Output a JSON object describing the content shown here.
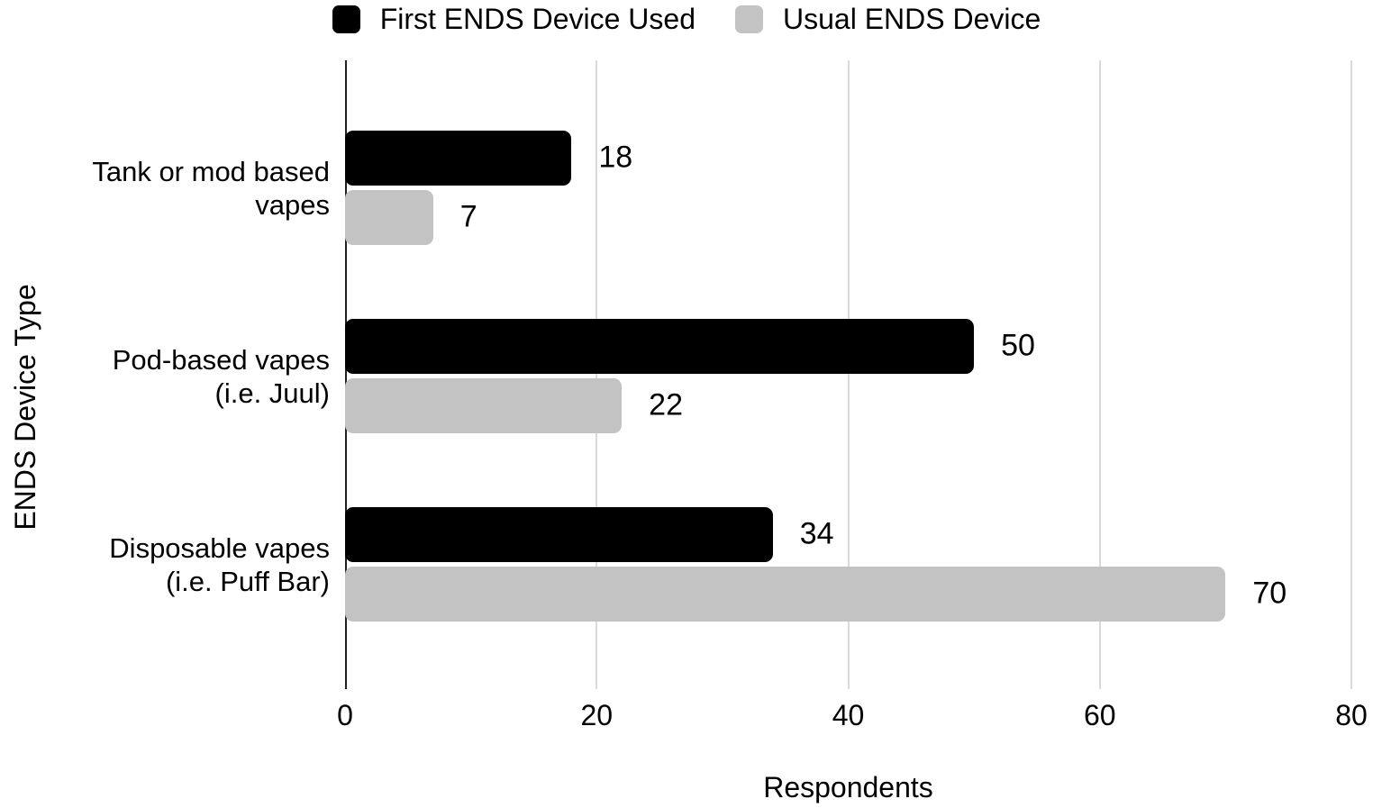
{
  "chart_data": {
    "type": "bar",
    "orientation": "horizontal",
    "title": "",
    "xlabel": "Respondents",
    "ylabel": "ENDS Device Type",
    "xlim": [
      0,
      80
    ],
    "xticks": [
      "0",
      "20",
      "40",
      "60",
      "80"
    ],
    "grid": true,
    "legend_position": "top-center",
    "data_labels": true,
    "categories": [
      {
        "lines": [
          "Tank or mod based",
          "vapes"
        ]
      },
      {
        "lines": [
          "Pod-based vapes",
          "(i.e. Juul)"
        ]
      },
      {
        "lines": [
          "Disposable vapes",
          "(i.e. Puff Bar)"
        ]
      }
    ],
    "series": [
      {
        "name": "First ENDS Device Used",
        "color": "#000000",
        "values": [
          18,
          50,
          34
        ]
      },
      {
        "name": "Usual ENDS Device",
        "color": "#c3c3c3",
        "values": [
          7,
          22,
          70
        ]
      }
    ]
  },
  "colors": {
    "background": "#ffffff",
    "axis_line": "#212121",
    "gridline": "#d9d9d9",
    "text": "#000000"
  }
}
